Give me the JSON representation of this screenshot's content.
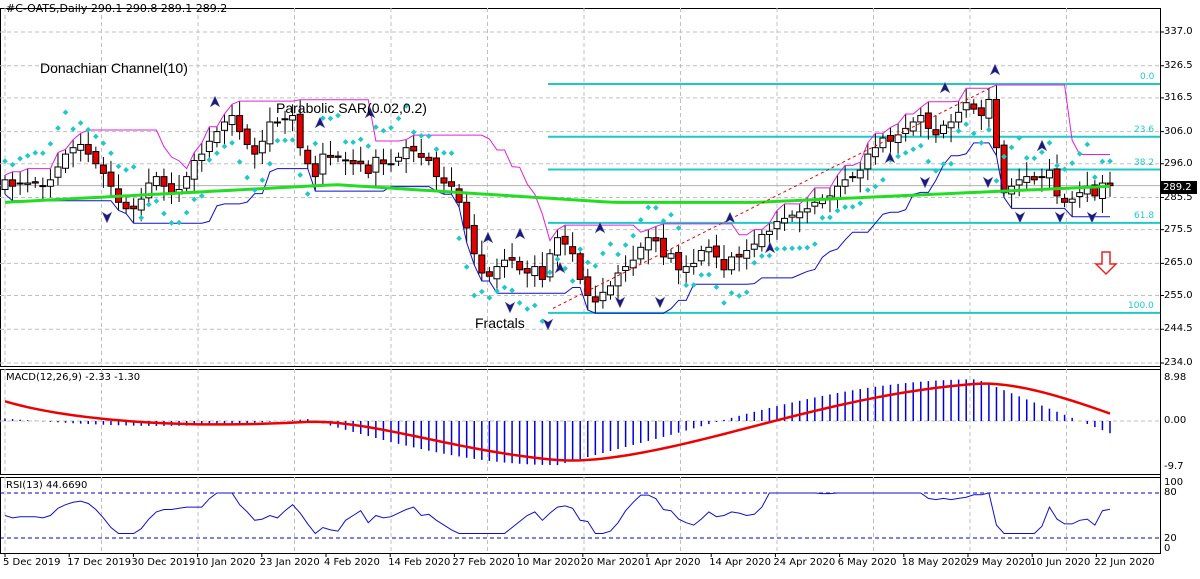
{
  "header": {
    "title": "#C-OATS,Daily  290.1 290.8 289.1 289.2"
  },
  "annotations": {
    "donchian": "Donachian Channel(10)",
    "psar": "Parabolic SAR(0.02,0.2)",
    "fractals": "Fractals"
  },
  "price_axis": [
    "337.0",
    "326.5",
    "316.5",
    "306.0",
    "296.0",
    "285.5",
    "275.5",
    "265.0",
    "255.0",
    "244.5",
    "234.0"
  ],
  "current_price": "289.2",
  "fib_levels": [
    {
      "label": "0.0",
      "price": 320.8
    },
    {
      "label": "23.6",
      "price": 304.4
    },
    {
      "label": "38.2",
      "price": 294.2
    },
    {
      "label": "61.8",
      "price": 277.6
    },
    {
      "label": "100.0",
      "price": 249.6
    }
  ],
  "macd": {
    "label": "MACD(12,26,9) -2.33 -1.30",
    "axis": [
      "8.98",
      "0.00",
      "-9.7"
    ]
  },
  "rsi": {
    "label": "RSI(13) 44.6690",
    "axis": [
      "100",
      "80",
      "20",
      "0"
    ]
  },
  "dates": [
    "5 Dec 2019",
    "17 Dec 2019",
    "30 Dec 2019",
    "10 Jan 2020",
    "23 Jan 2020",
    "4 Feb 2020",
    "14 Feb 2020",
    "27 Feb 2020",
    "10 Mar 2020",
    "20 Mar 2020",
    "1 Apr 2020",
    "14 Apr 2020",
    "24 Apr 2020",
    "6 May 2020",
    "18 May 2020",
    "29 May 2020",
    "10 Jun 2020",
    "22 Jun 2020"
  ],
  "colors": {
    "bull_body": "#ffffff",
    "bear_body": "#e00000",
    "ma": "#22dd22",
    "donchian_upper": "#e020e0",
    "donchian_lower": "#1010cc",
    "psar": "#20c8c8",
    "fib": "#20c8c8",
    "macd_signal": "#ee0000",
    "macd_hist": "#0000dd",
    "rsi": "#1010cc",
    "arrow": "#ee2222"
  },
  "chart_data": {
    "type": "candlestick",
    "title": "#C-OATS, Daily",
    "ylim": [
      234.0,
      337.0
    ],
    "x_labels": [
      "5 Dec 2019",
      "17 Dec 2019",
      "30 Dec 2019",
      "10 Jan 2020",
      "23 Jan 2020",
      "4 Feb 2020",
      "14 Feb 2020",
      "27 Feb 2020",
      "10 Mar 2020",
      "20 Mar 2020",
      "1 Apr 2020",
      "14 Apr 2020",
      "24 Apr 2020",
      "6 May 2020",
      "18 May 2020",
      "29 May 2020",
      "10 Jun 2020",
      "22 Jun 2020"
    ],
    "closes": [
      291,
      289,
      290,
      290,
      290,
      289,
      291,
      295,
      299,
      301,
      302,
      299,
      296,
      293,
      289,
      284,
      282,
      282,
      285,
      290,
      292,
      289,
      287,
      288,
      292,
      297,
      299,
      303,
      306,
      309,
      311,
      306,
      302,
      299,
      303,
      309,
      309,
      310,
      311,
      301,
      296,
      292,
      299,
      298,
      298,
      297,
      296,
      296,
      293,
      298,
      296,
      296,
      298,
      301,
      300,
      298,
      297,
      292,
      290,
      289,
      284,
      276,
      268,
      262,
      261,
      264,
      266,
      266,
      263,
      262,
      264,
      260,
      268,
      273,
      271,
      268,
      260,
      255,
      253,
      256,
      258,
      262,
      264,
      266,
      270,
      273,
      272,
      267,
      268,
      263,
      264,
      265,
      269,
      270,
      267,
      263,
      267,
      267,
      269,
      271,
      274,
      275,
      278,
      279,
      280,
      281,
      282,
      284,
      285,
      286,
      289,
      291,
      292,
      294,
      299,
      301,
      304,
      303,
      305,
      307,
      309,
      311,
      307,
      305,
      308,
      309,
      312,
      315,
      313,
      311,
      316,
      301,
      287,
      289,
      291,
      292,
      291,
      292,
      294,
      286,
      284,
      285,
      287,
      289,
      286,
      290,
      289.2
    ],
    "series": [
      {
        "name": "MA (green)",
        "approx": "285 at Dec 2019 rising to 290 mid-Feb, dips to 284 in Apr, rises to 289 by late Jun"
      },
      {
        "name": "MACD signal",
        "range": [
          -9.0,
          8.5
        ]
      },
      {
        "name": "RSI(13)",
        "last": 44.669,
        "range": [
          26,
          80
        ]
      }
    ],
    "fibonacci": {
      "0.0": 320.8,
      "23.6": 304.4,
      "38.2": 294.2,
      "61.8": 277.6,
      "100.0": 249.6
    }
  }
}
